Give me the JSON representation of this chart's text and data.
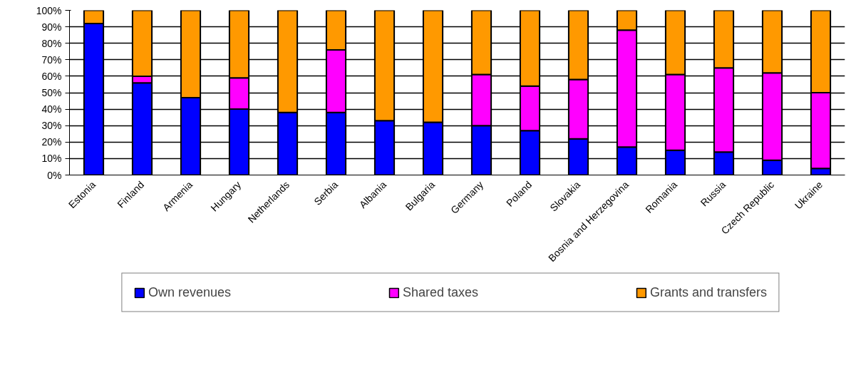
{
  "chart_data": {
    "type": "bar",
    "stacked": true,
    "categories": [
      "Estonia",
      "Finland",
      "Armenia",
      "Hungary",
      "Netherlands",
      "Serbia",
      "Albania",
      "Bulgaria",
      "Germany",
      "Poland",
      "Slovakia",
      "Bosnia and Herzegovina",
      "Romania",
      "Russia",
      "Czech Republic",
      "Ukraine"
    ],
    "series": [
      {
        "name": "Own revenues",
        "color": "#0000ff",
        "values": [
          92,
          56,
          47,
          40,
          38,
          38,
          33,
          32,
          30,
          27,
          22,
          17,
          15,
          14,
          9,
          4
        ]
      },
      {
        "name": "Shared taxes",
        "color": "#ff00ff",
        "values": [
          0,
          4,
          0,
          19,
          0,
          38,
          0,
          0,
          31,
          27,
          36,
          71,
          46,
          51,
          53,
          46
        ]
      },
      {
        "name": "Grants and transfers",
        "color": "#ff9900",
        "values": [
          8,
          40,
          53,
          41,
          62,
          24,
          67,
          68,
          39,
          46,
          42,
          12,
          39,
          35,
          38,
          50
        ]
      }
    ],
    "ylim": [
      0,
      100
    ],
    "yticks": [
      {
        "value": 0,
        "label": "0%"
      },
      {
        "value": 10,
        "label": "10%"
      },
      {
        "value": 20,
        "label": "20%"
      },
      {
        "value": 30,
        "label": "30%"
      },
      {
        "value": 40,
        "label": "40%"
      },
      {
        "value": 50,
        "label": "50%"
      },
      {
        "value": 60,
        "label": "60%"
      },
      {
        "value": 70,
        "label": "70%"
      },
      {
        "value": 80,
        "label": "80%"
      },
      {
        "value": 90,
        "label": "90%"
      },
      {
        "value": 100,
        "label": "100%"
      }
    ],
    "grid": "y",
    "legend": "bottom"
  }
}
